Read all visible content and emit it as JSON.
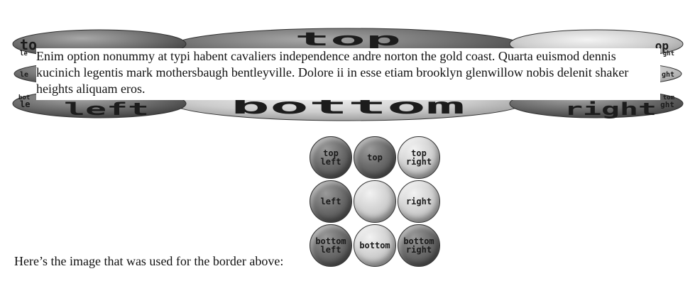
{
  "demo": {
    "paragraph": "Enim option nonummy at typi habent cavaliers independence andre norton the gold coast. Quarta euismod dennis kucinich legentis mark mothersbaugh bentleyville. Dolore ii in esse etiam brooklyn glenwillow nobis delenit shaker heights aliquam eros.",
    "border_labels": {
      "top": "top",
      "bottom": "bottom",
      "left": "left",
      "right": "right",
      "top_left_a": "to",
      "top_left_b": "le",
      "top_right_a": "op",
      "top_right_b": "ght",
      "left_small": "le",
      "right_small": "ght",
      "bottom_left_a": "bot",
      "bottom_left_b": "le",
      "bottom_right_a": "tom",
      "bottom_right_b": "ght"
    }
  },
  "caption": "Here’s the image that was used for the border above:",
  "tiles": [
    {
      "label": "top\nleft",
      "tone": "dark"
    },
    {
      "label": "top",
      "tone": "dark"
    },
    {
      "label": "top\nright",
      "tone": "light"
    },
    {
      "label": "left",
      "tone": "dark"
    },
    {
      "label": "",
      "tone": "light"
    },
    {
      "label": "right",
      "tone": "light"
    },
    {
      "label": "bottom\nleft",
      "tone": "dark"
    },
    {
      "label": "bottom",
      "tone": "light"
    },
    {
      "label": "bottom\nright",
      "tone": "dark"
    }
  ]
}
